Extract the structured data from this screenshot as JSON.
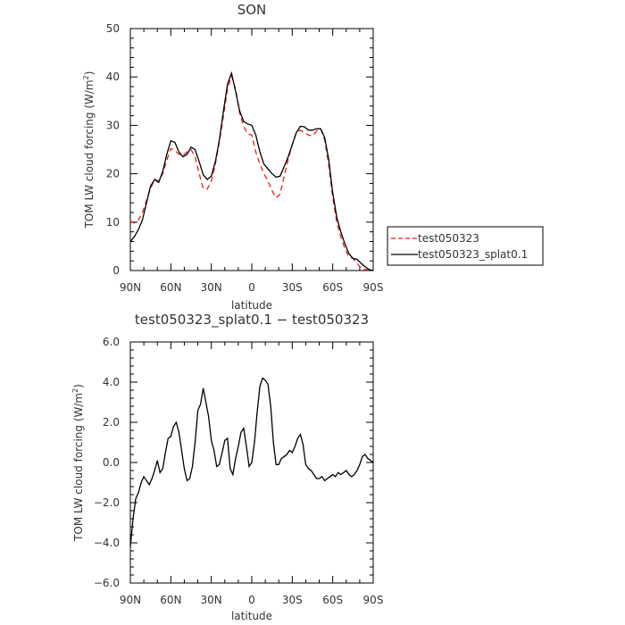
{
  "chart_data": [
    {
      "type": "line",
      "title": "SON",
      "xlabel": "latitude",
      "ylabel_main": "TOM LW cloud forcing (W/m",
      "ylabel_sup": "2",
      "ylabel_end": ")",
      "xlim": [
        90,
        -90
      ],
      "ylim": [
        0,
        50
      ],
      "xticks": [
        90,
        60,
        30,
        0,
        -30,
        -60,
        -90
      ],
      "xtick_labels": [
        "90N",
        "60N",
        "30N",
        "0",
        "30S",
        "60S",
        "90S"
      ],
      "yticks": [
        0,
        10,
        20,
        30,
        40,
        50
      ],
      "ytick_labels": [
        "0",
        "10",
        "20",
        "30",
        "40",
        "50"
      ],
      "legend_position": "right",
      "series": [
        {
          "name": "test050323",
          "color": "#e0201b",
          "dash": "dashed",
          "x": [
            90,
            87,
            84,
            81,
            78,
            75,
            72,
            69,
            66,
            63,
            60,
            57,
            54,
            51,
            48,
            45,
            42,
            39,
            36,
            33,
            30,
            27,
            24,
            21,
            18,
            15,
            12,
            9,
            6,
            3,
            0,
            -3,
            -6,
            -9,
            -12,
            -15,
            -18,
            -21,
            -24,
            -27,
            -30,
            -33,
            -36,
            -39,
            -42,
            -45,
            -48,
            -51,
            -54,
            -57,
            -60,
            -63,
            -66,
            -69,
            -72,
            -75,
            -78,
            -81,
            -84,
            -87,
            -90
          ],
          "y": [
            10.2,
            9.8,
            10.5,
            12.0,
            14.5,
            17.0,
            18.8,
            18.5,
            20.0,
            22.8,
            25.2,
            24.8,
            24.0,
            23.8,
            24.5,
            25.0,
            23.5,
            20.0,
            17.0,
            16.8,
            18.5,
            22.0,
            26.5,
            32.0,
            37.5,
            40.2,
            37.5,
            32.5,
            29.8,
            28.2,
            28.0,
            24.5,
            22.0,
            20.0,
            18.5,
            16.5,
            15.0,
            15.8,
            19.5,
            23.0,
            26.0,
            28.5,
            29.0,
            28.5,
            28.0,
            27.8,
            28.8,
            29.3,
            27.0,
            22.0,
            15.0,
            10.0,
            7.0,
            4.5,
            2.8,
            2.5,
            1.5,
            0.5,
            0.2,
            0.1,
            0.0
          ]
        },
        {
          "name": "test050323_splat0.1",
          "color": "#000000",
          "dash": "solid",
          "x": [
            90,
            87,
            84,
            81,
            78,
            75,
            72,
            69,
            66,
            63,
            60,
            57,
            54,
            51,
            48,
            45,
            42,
            39,
            36,
            33,
            30,
            27,
            24,
            21,
            18,
            15,
            12,
            9,
            6,
            3,
            0,
            -3,
            -6,
            -9,
            -12,
            -15,
            -18,
            -21,
            -24,
            -27,
            -30,
            -33,
            -36,
            -39,
            -42,
            -45,
            -48,
            -51,
            -54,
            -57,
            -60,
            -63,
            -66,
            -69,
            -72,
            -75,
            -78,
            -81,
            -84,
            -87,
            -90
          ],
          "y": [
            6.0,
            7.0,
            8.5,
            10.5,
            14.0,
            17.5,
            18.8,
            18.2,
            20.5,
            24.0,
            26.8,
            26.5,
            24.5,
            23.5,
            24.0,
            25.5,
            25.0,
            22.5,
            19.8,
            18.8,
            19.5,
            22.5,
            27.0,
            33.0,
            38.5,
            40.8,
            37.0,
            33.0,
            30.8,
            30.3,
            30.0,
            28.0,
            24.5,
            22.0,
            21.0,
            20.0,
            19.3,
            19.5,
            21.5,
            23.5,
            26.0,
            28.5,
            29.8,
            29.7,
            29.0,
            29.0,
            29.3,
            29.3,
            27.5,
            23.0,
            16.0,
            11.0,
            8.0,
            5.5,
            3.5,
            2.5,
            2.3,
            1.5,
            0.8,
            0.2,
            0.0
          ]
        }
      ]
    },
    {
      "type": "line",
      "title": "test050323_splat0.1 − test050323",
      "xlabel": "latitude",
      "ylabel_main": "TOM LW cloud forcing (W/m",
      "ylabel_sup": "2",
      "ylabel_end": ")",
      "xlim": [
        90,
        -90
      ],
      "ylim": [
        -6,
        6
      ],
      "xticks": [
        90,
        60,
        30,
        0,
        -30,
        -60,
        -90
      ],
      "xtick_labels": [
        "90N",
        "60N",
        "30N",
        "0",
        "30S",
        "60S",
        "90S"
      ],
      "yticks": [
        -6,
        -4,
        -2,
        0,
        2,
        4,
        6
      ],
      "ytick_labels": [
        "−6.0",
        "−4.0",
        "−2.0",
        "0.0",
        "2.0",
        "4.0",
        "6.0"
      ],
      "series": [
        {
          "color": "#000000",
          "dash": "solid",
          "x": [
            90,
            88,
            86,
            84,
            82,
            80,
            78,
            76,
            74,
            72,
            70,
            68,
            66,
            64,
            62,
            60,
            58,
            56,
            54,
            52,
            50,
            48,
            46,
            44,
            42,
            40,
            38,
            36,
            34,
            32,
            30,
            28,
            26,
            24,
            22,
            20,
            18,
            16,
            14,
            12,
            10,
            8,
            6,
            4,
            2,
            0,
            -2,
            -4,
            -6,
            -8,
            -10,
            -12,
            -14,
            -16,
            -18,
            -20,
            -22,
            -24,
            -26,
            -28,
            -30,
            -32,
            -34,
            -36,
            -38,
            -40,
            -42,
            -44,
            -46,
            -48,
            -50,
            -52,
            -54,
            -56,
            -58,
            -60,
            -62,
            -64,
            -66,
            -68,
            -70,
            -72,
            -74,
            -76,
            -78,
            -80,
            -82,
            -84,
            -86,
            -88,
            -90
          ],
          "y": [
            -4.2,
            -2.8,
            -1.8,
            -1.5,
            -1.0,
            -0.7,
            -0.9,
            -1.1,
            -0.8,
            -0.4,
            0.1,
            -0.5,
            -0.3,
            0.5,
            1.2,
            1.3,
            1.8,
            2.0,
            1.5,
            0.6,
            -0.3,
            -0.9,
            -0.8,
            -0.2,
            1.0,
            2.6,
            2.9,
            3.7,
            3.0,
            2.3,
            1.1,
            0.6,
            -0.2,
            -0.1,
            0.5,
            1.1,
            1.2,
            -0.3,
            -0.6,
            0.2,
            0.8,
            1.5,
            1.7,
            0.8,
            -0.2,
            0.0,
            1.0,
            2.5,
            3.8,
            4.2,
            4.1,
            3.9,
            2.8,
            1.0,
            -0.1,
            -0.1,
            0.2,
            0.3,
            0.4,
            0.6,
            0.5,
            0.8,
            1.2,
            1.4,
            0.9,
            -0.1,
            -0.3,
            -0.4,
            -0.6,
            -0.8,
            -0.8,
            -0.7,
            -0.9,
            -0.8,
            -0.7,
            -0.6,
            -0.7,
            -0.5,
            -0.6,
            -0.5,
            -0.4,
            -0.6,
            -0.7,
            -0.6,
            -0.4,
            -0.1,
            0.3,
            0.4,
            0.2,
            0.1,
            0.0
          ]
        }
      ]
    }
  ]
}
